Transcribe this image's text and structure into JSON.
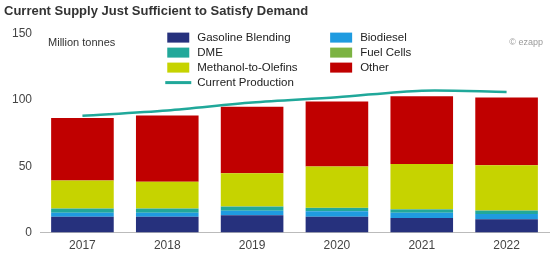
{
  "chart_data": {
    "type": "bar",
    "title": "Current Supply Just Sufficient to Satisfy Demand",
    "ylabel": "Million tonnes",
    "annotation": "© ezapp",
    "categories": [
      "2017",
      "2018",
      "2019",
      "2020",
      "2021",
      "2022"
    ],
    "series": [
      {
        "name": "Gasoline Blending",
        "color": "#26317d",
        "values": [
          12,
          12,
          13,
          12,
          11,
          10
        ]
      },
      {
        "name": "Biodiesel",
        "color": "#1f9be0",
        "values": [
          3,
          3,
          3.5,
          4,
          4,
          4
        ]
      },
      {
        "name": "DME",
        "color": "#22a89a",
        "values": [
          3,
          3,
          3,
          2.5,
          2.5,
          2.5
        ]
      },
      {
        "name": "Fuel Cells",
        "color": "#7cb342",
        "values": [
          0.3,
          0.3,
          0.3,
          0.3,
          0.3,
          0.3
        ]
      },
      {
        "name": "Methanol-to-Olefins",
        "color": "#c6d300",
        "values": [
          21,
          20,
          25,
          31,
          34,
          34
        ]
      },
      {
        "name": "Other",
        "color": "#c00000",
        "values": [
          47,
          50,
          50,
          49,
          51,
          51
        ]
      },
      {
        "name": "Current Production",
        "type": "line",
        "color": "#20a89a",
        "values": [
          88,
          92,
          98,
          102,
          107,
          106
        ]
      }
    ],
    "stacked": true,
    "ylim": [
      0,
      150
    ],
    "yticks": [
      0,
      50,
      100,
      150
    ],
    "grid": false,
    "legend": "top"
  }
}
